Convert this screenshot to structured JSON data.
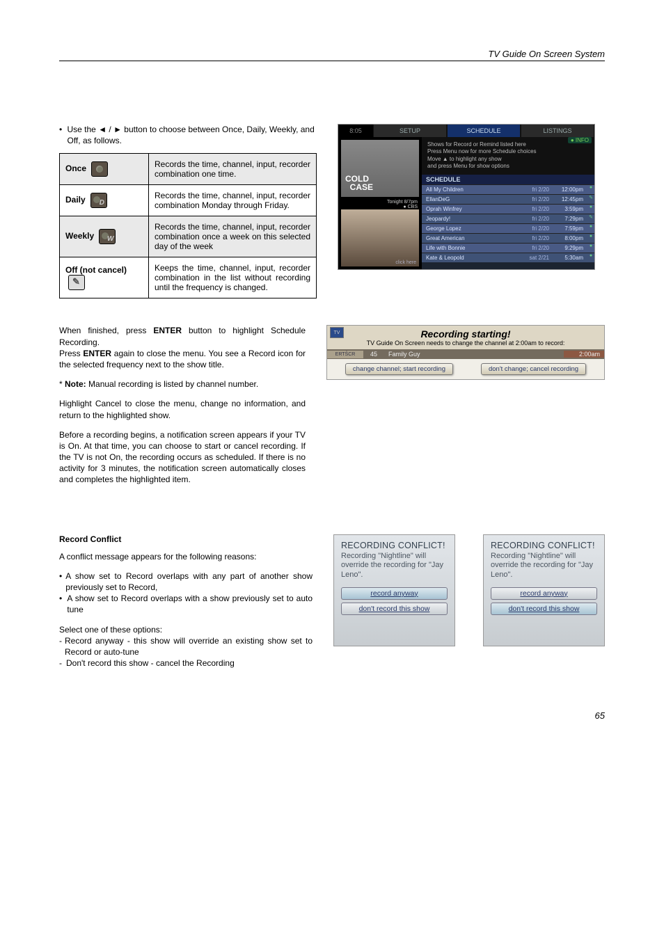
{
  "header": {
    "section_title": "TV Guide On Screen System"
  },
  "intro": {
    "text_before": "Use the ",
    "arrows": "◄ / ►",
    "text_after": " button to choose between Once, Daily, Weekly, and Off, as follows."
  },
  "freq_table": {
    "rows": [
      {
        "label": "Once",
        "icon": "once",
        "desc": "Records the time, channel, input, recorder combination one time."
      },
      {
        "label": "Daily",
        "icon": "daily",
        "desc": "Records the time, channel, input, recorder combination Monday through Friday."
      },
      {
        "label": "Weekly",
        "icon": "weekly",
        "desc": "Records the time, channel, input, recorder combination once a week on this selected day of the week"
      },
      {
        "label": "Off (not cancel)",
        "icon": "off",
        "desc": "Keeps the time, channel, input, recorder combination in the list without recording until the frequency is changed."
      }
    ]
  },
  "schedule": {
    "corner": "8:05",
    "tabs": [
      "SETUP",
      "SCHEDULE",
      "LISTINGS"
    ],
    "info_tag": "● INFO",
    "help_lines": [
      "Shows for Record or Remind listed here",
      "Press Menu now for more Schedule choices",
      "Move ▲ to highlight any show",
      "and press Menu for show options"
    ],
    "preview_title": "COLD",
    "preview_subtitle": "CASE",
    "preview_caption": "Tonight 8/7pm",
    "preview_logo": "● CBS",
    "click_here": "click\nhere",
    "heading": "SCHEDULE",
    "rows": [
      {
        "name": "All My Children",
        "date": "fri 2/20",
        "time": "12:00pm",
        "ico": "●"
      },
      {
        "name": "EllanDeG",
        "date": "fri 2/20",
        "time": "12:45pm",
        "ico": "✎"
      },
      {
        "name": "Oprah Winfrey",
        "date": "fri 2/20",
        "time": "3:59pm",
        "ico": "●"
      },
      {
        "name": "Jeopardy!",
        "date": "fri 2/20",
        "time": "7:29pm",
        "ico": "✎"
      },
      {
        "name": "George Lopez",
        "date": "fri 2/20",
        "time": "7:59pm",
        "ico": "●"
      },
      {
        "name": "Great American",
        "date": "fri 2/20",
        "time": "8:00pm",
        "ico": "●"
      },
      {
        "name": "Life with Bonnie",
        "date": "fri 2/20",
        "time": "9:29pm",
        "ico": "●"
      },
      {
        "name": "Kate & Leopold",
        "date": "sat 2/21",
        "time": "5:30am",
        "ico": "●"
      }
    ]
  },
  "mid_paragraphs": {
    "p1a": "When finished, press ",
    "p1b": "ENTER",
    "p1c": " button to highlight Schedule Recording.",
    "p2a": "Press ",
    "p2b": "ENTER",
    "p2c": " again to close the menu. You see a Record icon for the selected frequency next to the show title.",
    "note_label": "* Note:",
    "note_text": " Manual recording is listed by channel number.",
    "p3": "Highlight Cancel to close the menu, change no information, and return to the highlighted show.",
    "p4": "Before a recording begins, a notification screen appears if your TV is On. At that time, you can choose to start or cancel recording. If the TV is not On, the recording occurs as scheduled. If there is no activity for 3 minutes, the notification screen automatically closes and completes the highlighted item."
  },
  "rec_start": {
    "logo": "TV",
    "title": "Recording starting!",
    "sub": "TV Guide On Screen needs to change the channel at  2:00am to record:",
    "bar_logo": "ERTŠCR",
    "channel": "45",
    "show": "Family Guy",
    "time": "2:00am",
    "btn_left": "change channel; start recording",
    "btn_right": "don't change; cancel recording"
  },
  "conflict_section": {
    "heading": "Record Conflict",
    "intro": "A conflict message appears for the following reasons:",
    "bullets": [
      "A show set to Record overlaps with any part of another show previously set to Record,",
      "A show set to Record overlaps with a show previously set to auto tune"
    ],
    "select_intro": "Select one of these options:",
    "options": [
      "Record anyway - this show will override an existing show set to Record or auto-tune",
      "Don't record this show - cancel the Recording"
    ],
    "popup": {
      "title": "RECORDING CONFLICT!",
      "msg": "Recording \"Nightline\" will override the recording for \"Jay Leno\".",
      "btn1": "record anyway",
      "btn2": "don't record this show"
    }
  },
  "page_number": "65"
}
